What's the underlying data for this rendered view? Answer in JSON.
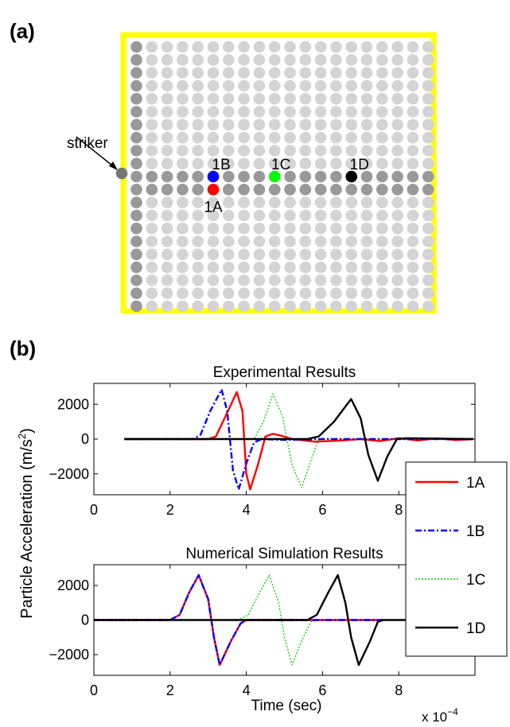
{
  "panel_a": {
    "label": "(a)",
    "striker_label": "striker",
    "grid_rows": 21,
    "grid_cols": 20,
    "highlight_rows": [
      10,
      11
    ],
    "particles": [
      {
        "label": "1A",
        "color": "#ff0000"
      },
      {
        "label": "1B",
        "color": "#0000ff"
      },
      {
        "label": "1C",
        "color": "#00ff00"
      },
      {
        "label": "1D",
        "color": "#000000"
      }
    ],
    "colors": {
      "frame": "#ffff00",
      "light": "#d4d4d4",
      "dark": "#999999"
    }
  },
  "panel_b": {
    "label": "(b)",
    "ylabel_prefix": "Particle Acceleration (m/s",
    "ylabel_sup": "2",
    "ylabel_suffix": ")",
    "xlabel": "Time (sec)",
    "x_multiplier_base": "x 10",
    "x_multiplier_exp": "−4"
  },
  "legend": [
    {
      "label": "1A",
      "color": "#ff0000",
      "dash": "solid"
    },
    {
      "label": "1B",
      "color": "#0000ff",
      "dash": "dashdot"
    },
    {
      "label": "1C",
      "color": "#00cc00",
      "dash": "dotted"
    },
    {
      "label": "1D",
      "color": "#000000",
      "dash": "solid"
    }
  ],
  "chart_data": [
    {
      "type": "line",
      "title": "Experimental Results",
      "xlim": [
        0,
        10
      ],
      "ylim": [
        -3200,
        3200
      ],
      "xticks": [
        0,
        2,
        4,
        6,
        8
      ],
      "xtick_labels": [
        "0",
        "2",
        "4",
        "6",
        "8"
      ],
      "yticks": [
        2000,
        0,
        -2000
      ],
      "ytick_labels": [
        "2000",
        "0",
        "−2000"
      ],
      "x_scale_note": "x 10^-4 sec",
      "series": [
        {
          "name": "1A",
          "color": "#ff0000",
          "dash": "solid",
          "points": [
            [
              0.8,
              0
            ],
            [
              3.0,
              0
            ],
            [
              3.2,
              150
            ],
            [
              3.45,
              1300
            ],
            [
              3.75,
              2700
            ],
            [
              3.9,
              1600
            ],
            [
              4.0,
              -2000
            ],
            [
              4.1,
              -2900
            ],
            [
              4.3,
              -1500
            ],
            [
              4.5,
              150
            ],
            [
              4.7,
              300
            ],
            [
              4.9,
              200
            ],
            [
              5.2,
              0
            ],
            [
              5.8,
              -150
            ],
            [
              6.5,
              -80
            ],
            [
              7.0,
              0
            ],
            [
              7.5,
              -120
            ],
            [
              8.0,
              50
            ],
            [
              8.5,
              -80
            ],
            [
              9.0,
              40
            ],
            [
              9.5,
              -60
            ],
            [
              9.95,
              0
            ]
          ]
        },
        {
          "name": "1B",
          "color": "#0000ff",
          "dash": "dashdot",
          "points": [
            [
              0.8,
              0
            ],
            [
              2.6,
              0
            ],
            [
              2.8,
              250
            ],
            [
              3.05,
              1600
            ],
            [
              3.35,
              2850
            ],
            [
              3.5,
              1600
            ],
            [
              3.65,
              -1800
            ],
            [
              3.8,
              -2900
            ],
            [
              4.0,
              -1400
            ],
            [
              4.2,
              -200
            ],
            [
              4.4,
              0
            ],
            [
              5.0,
              -50
            ],
            [
              6.0,
              0
            ],
            [
              9.95,
              0
            ]
          ]
        },
        {
          "name": "1C",
          "color": "#00cc00",
          "dash": "dotted",
          "points": [
            [
              0.8,
              0
            ],
            [
              4.2,
              0
            ],
            [
              4.45,
              1000
            ],
            [
              4.7,
              2600
            ],
            [
              4.95,
              1300
            ],
            [
              5.2,
              -1500
            ],
            [
              5.45,
              -2800
            ],
            [
              5.7,
              -1200
            ],
            [
              5.9,
              0
            ],
            [
              9.95,
              0
            ]
          ]
        },
        {
          "name": "1D",
          "color": "#000000",
          "dash": "solid",
          "points": [
            [
              0.8,
              0
            ],
            [
              5.6,
              0
            ],
            [
              5.9,
              150
            ],
            [
              6.3,
              1000
            ],
            [
              6.75,
              2300
            ],
            [
              7.0,
              1200
            ],
            [
              7.2,
              -900
            ],
            [
              7.45,
              -2400
            ],
            [
              7.7,
              -1000
            ],
            [
              7.95,
              0
            ],
            [
              8.2,
              50
            ],
            [
              9.95,
              0
            ]
          ]
        }
      ]
    },
    {
      "type": "line",
      "title": "Numerical Simulation Results",
      "xlim": [
        0,
        10
      ],
      "ylim": [
        -3200,
        3200
      ],
      "xticks": [
        0,
        2,
        4,
        6,
        8
      ],
      "xtick_labels": [
        "0",
        "2",
        "4",
        "6",
        "8"
      ],
      "yticks": [
        2000,
        0,
        -2000
      ],
      "ytick_labels": [
        "2000",
        "0",
        "−2000"
      ],
      "x_scale_note": "x 10^-4 sec",
      "series": [
        {
          "name": "1A",
          "color": "#ff0000",
          "dash": "solid",
          "points": [
            [
              0,
              0
            ],
            [
              2.0,
              0
            ],
            [
              2.25,
              300
            ],
            [
              2.5,
              1600
            ],
            [
              2.75,
              2600
            ],
            [
              3.0,
              1200
            ],
            [
              3.15,
              -1000
            ],
            [
              3.3,
              -2600
            ],
            [
              3.6,
              -1200
            ],
            [
              3.85,
              -200
            ],
            [
              4.0,
              0
            ],
            [
              7.6,
              0
            ]
          ]
        },
        {
          "name": "1B",
          "color": "#0000ff",
          "dash": "dashdot",
          "points": [
            [
              0,
              0
            ],
            [
              2.0,
              0
            ],
            [
              2.25,
              300
            ],
            [
              2.5,
              1600
            ],
            [
              2.75,
              2600
            ],
            [
              3.0,
              1200
            ],
            [
              3.15,
              -1000
            ],
            [
              3.3,
              -2600
            ],
            [
              3.6,
              -1200
            ],
            [
              3.85,
              -200
            ],
            [
              4.0,
              0
            ],
            [
              7.6,
              0
            ]
          ]
        },
        {
          "name": "1C",
          "color": "#00cc00",
          "dash": "dotted",
          "points": [
            [
              0,
              0
            ],
            [
              3.8,
              0
            ],
            [
              4.05,
              300
            ],
            [
              4.35,
              1600
            ],
            [
              4.6,
              2600
            ],
            [
              4.85,
              1000
            ],
            [
              5.0,
              -1000
            ],
            [
              5.2,
              -2600
            ],
            [
              5.45,
              -1200
            ],
            [
              5.7,
              -100
            ],
            [
              5.9,
              0
            ],
            [
              9.95,
              0
            ]
          ]
        },
        {
          "name": "1D",
          "color": "#000000",
          "dash": "solid",
          "points": [
            [
              0,
              0
            ],
            [
              5.6,
              0
            ],
            [
              5.85,
              300
            ],
            [
              6.15,
              1600
            ],
            [
              6.4,
              2600
            ],
            [
              6.6,
              1000
            ],
            [
              6.75,
              -1000
            ],
            [
              6.95,
              -2600
            ],
            [
              7.25,
              -1200
            ],
            [
              7.45,
              -100
            ],
            [
              7.6,
              0
            ],
            [
              9.95,
              0
            ]
          ]
        }
      ]
    }
  ]
}
